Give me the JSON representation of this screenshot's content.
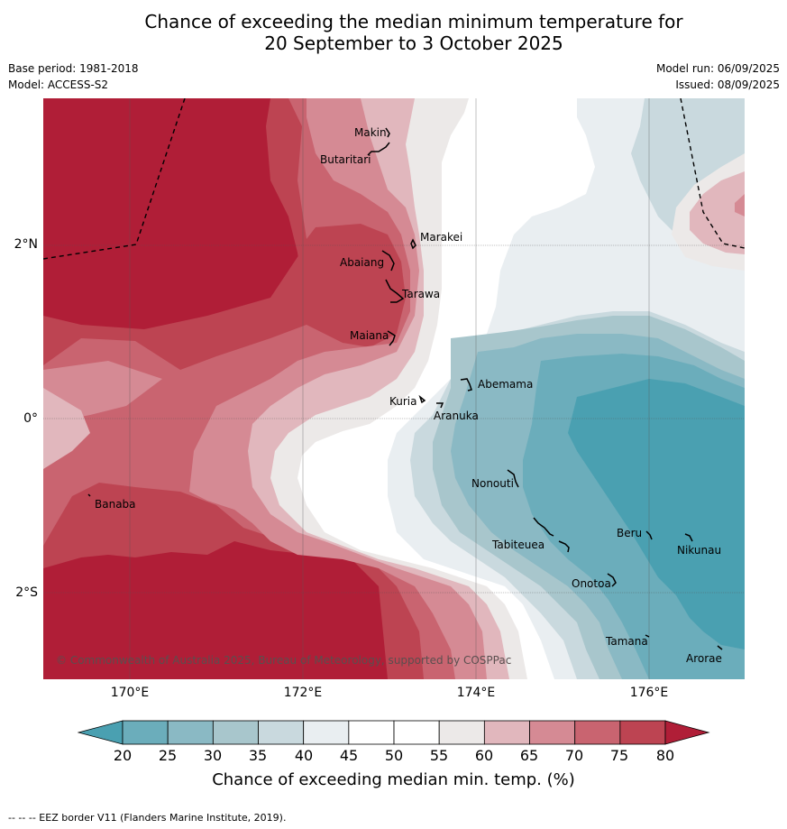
{
  "title": {
    "line1": "Chance of exceeding the median minimum temperature for",
    "line2": "20 September to 3 October 2025"
  },
  "meta": {
    "base_period": "Base period: 1981-2018",
    "model": "Model: ACCESS-S2",
    "model_run": "Model run: 06/09/2025",
    "issued": "Issued: 08/09/2025"
  },
  "map": {
    "lat_labels": [
      "2°N",
      "0°",
      "2°S"
    ],
    "lon_labels": [
      "170°E",
      "172°E",
      "174°E",
      "176°E"
    ],
    "places": {
      "makin": "Makin",
      "butaritari": "Butaritari",
      "marakei": "Marakei",
      "abaiang": "Abaiang",
      "tarawa": "Tarawa",
      "maiana": "Maiana",
      "abemama": "Abemama",
      "kuria": "Kuria",
      "aranuka": "Aranuka",
      "banaba": "Banaba",
      "nonouti": "Nonouti",
      "tabiteuea": "Tabiteuea",
      "beru": "Beru",
      "nikunau": "Nikunau",
      "onotoa": "Onotoa",
      "tamana": "Tamana",
      "arorae": "Arorae"
    },
    "copyright": "© Commonwealth of Australia 2025, Bureau of Meteorology, supported by COSPPac"
  },
  "colorbar": {
    "ticks": [
      "20",
      "25",
      "30",
      "35",
      "40",
      "45",
      "50",
      "55",
      "60",
      "65",
      "70",
      "75",
      "80"
    ],
    "label": "Chance of exceeding median min. temp. (%)",
    "colors": {
      "below_20": "#4aa0b1",
      "c20_25": "#6badbb",
      "c25_30": "#8ab9c4",
      "c30_35": "#a8c6cc",
      "c35_40": "#c9d9de",
      "c40_45": "#e9eef1",
      "c45_50": "#ffffff",
      "c50_55": "#ffffff",
      "c55_60": "#ece9e8",
      "c60_65": "#e1b7bd",
      "c65_70": "#d58a94",
      "c70_75": "#c96470",
      "c75_80": "#bd4452",
      "above_80": "#b01e37"
    }
  },
  "footnote": "--  --  -- EEZ border V11 (Flanders Marine Institute, 2019)."
}
